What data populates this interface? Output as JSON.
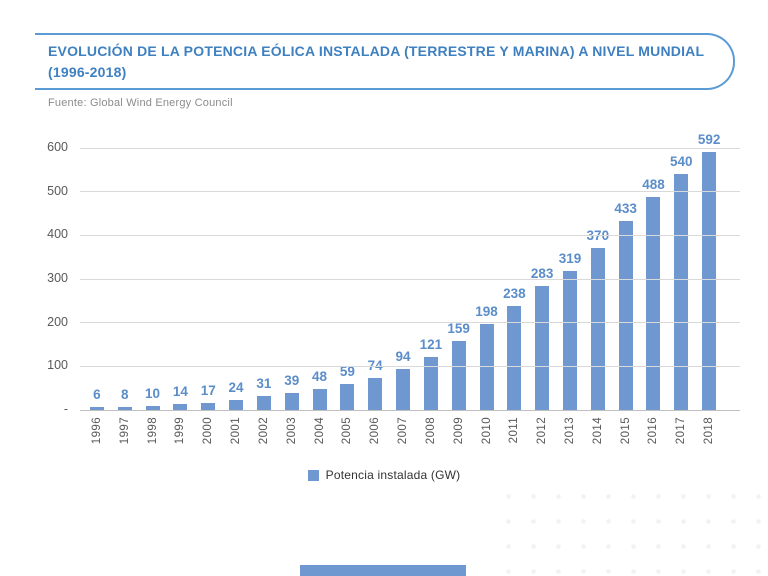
{
  "header": {
    "title_line1": "EVOLUCIÓN DE LA POTENCIA EÓLICA INSTALADA (TERRESTRE Y MARINA) A NIVEL MUNDIAL",
    "title_line2": "(1996-2018)",
    "source": "Fuente: Global Wind Energy Council"
  },
  "legend": {
    "label": "Potencia instalada (GW)"
  },
  "colors": {
    "bar": "#6f97d0",
    "value_label": "#5b8dc9",
    "title": "#3f80c1",
    "title_border": "#5b9bd5",
    "source_text": "#8c8c8c",
    "axis_text": "#595959",
    "gridline": "#d9d9d9",
    "baseline": "#c0c0c0"
  },
  "chart_data": {
    "type": "bar",
    "title": "EVOLUCIÓN DE LA POTENCIA EÓLICA INSTALADA (TERRESTRE Y MARINA) A NIVEL MUNDIAL (1996-2018)",
    "source": "Fuente: Global Wind Energy Council",
    "series_name": "Potencia instalada (GW)",
    "categories": [
      "1996",
      "1997",
      "1998",
      "1999",
      "2000",
      "2001",
      "2002",
      "2003",
      "2004",
      "2005",
      "2006",
      "2007",
      "2008",
      "2009",
      "2010",
      "2011",
      "2012",
      "2013",
      "2014",
      "2015",
      "2016",
      "2017",
      "2018"
    ],
    "values": [
      6,
      8,
      10,
      14,
      17,
      24,
      31,
      39,
      48,
      59,
      74,
      94,
      121,
      159,
      198,
      238,
      283,
      319,
      370,
      433,
      488,
      540,
      592
    ],
    "xlabel": "",
    "ylabel": "",
    "ylim": [
      0,
      600
    ],
    "yticks": [
      0,
      100,
      200,
      300,
      400,
      500,
      600
    ],
    "ytick_labels": [
      "-",
      "100",
      "200",
      "300",
      "400",
      "500",
      "600"
    ],
    "grid": true,
    "legend_position": "bottom",
    "value_labels": true,
    "x_tick_rotation": 90
  }
}
